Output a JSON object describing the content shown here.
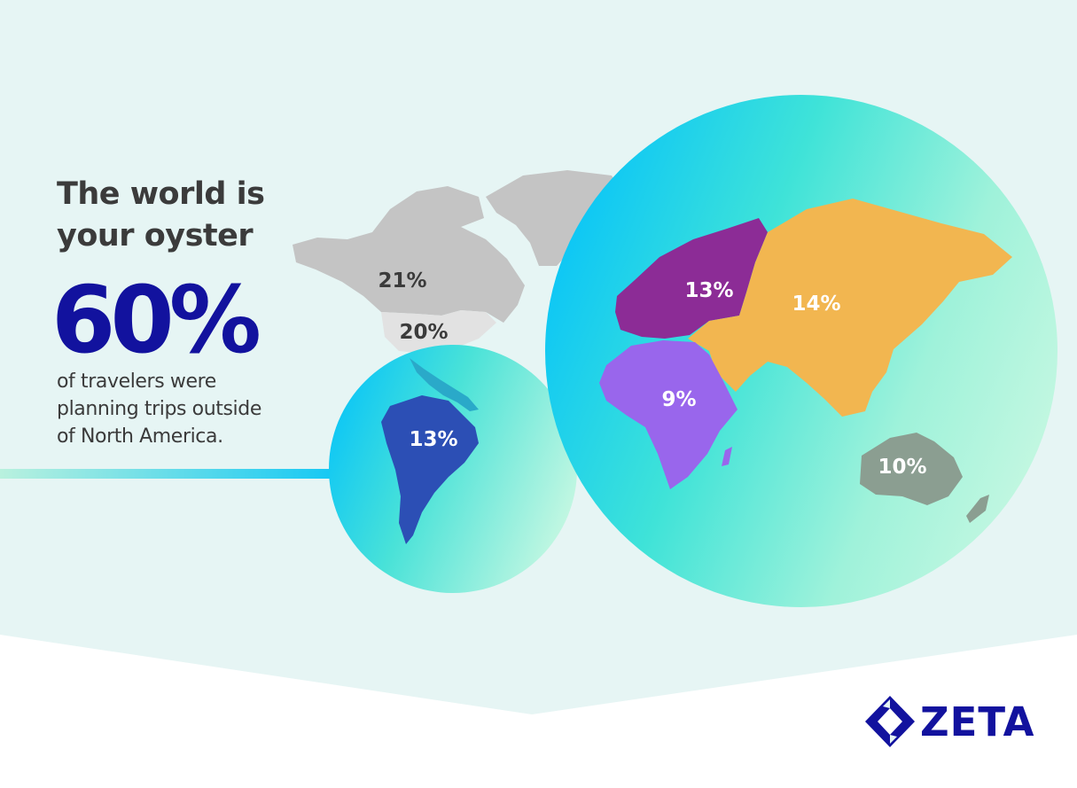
{
  "headline": [
    "The world is",
    "your oyster"
  ],
  "big_stat": "60%",
  "stat_description": [
    "of travelers were",
    "planning trips outside",
    "of North America."
  ],
  "regions": [
    {
      "name": "Canada",
      "label": "21%",
      "value": 21,
      "color": "#c4c4c4"
    },
    {
      "name": "United States",
      "label": "20%",
      "value": 20,
      "color": "#e2e2e2"
    },
    {
      "name": "South America",
      "label": "13%",
      "value": 13,
      "color": "#2c4fb5"
    },
    {
      "name": "Europe",
      "label": "13%",
      "value": 13,
      "color": "#8c2c96"
    },
    {
      "name": "Asia",
      "label": "14%",
      "value": 14,
      "color": "#f2b650"
    },
    {
      "name": "Africa",
      "label": "9%",
      "value": 9,
      "color": "#9966ec"
    },
    {
      "name": "Australia",
      "label": "10%",
      "value": 10,
      "color": "#8b9e91"
    }
  ],
  "colors": {
    "background": "#e6f5f4",
    "accent": "#12129e",
    "bubble_cyan": "#12c8f4",
    "bubble_mint": "#c6f7dd",
    "text": "#3b3b3b"
  },
  "logo": {
    "text": "ZETA",
    "icon": "zeta-diamond-icon"
  }
}
